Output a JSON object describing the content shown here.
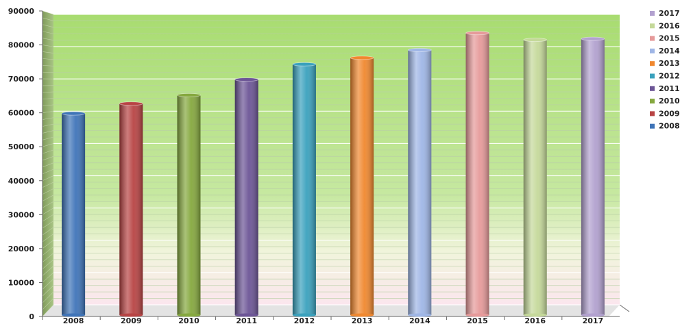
{
  "chart_data": {
    "type": "bar",
    "categories": [
      "2008",
      "2009",
      "2010",
      "2011",
      "2012",
      "2013",
      "2014",
      "2015",
      "2016",
      "2017"
    ],
    "values": [
      59800,
      62700,
      65200,
      69800,
      74300,
      76200,
      78500,
      83500,
      81500,
      81800
    ],
    "ylim": [
      0,
      90000
    ],
    "yticks": [
      0,
      10000,
      20000,
      30000,
      40000,
      50000,
      60000,
      70000,
      80000,
      90000
    ],
    "grid": true,
    "legend_position": "right",
    "legend": [
      "2017",
      "2016",
      "2015",
      "2014",
      "2013",
      "2012",
      "2011",
      "2010",
      "2009",
      "2008"
    ],
    "colors": [
      "#3f74b8",
      "#b84444",
      "#85a83e",
      "#6c5596",
      "#3aa1bd",
      "#f0882f",
      "#9fb6e6",
      "#e69a9a",
      "#c5d99a",
      "#b2a1cf"
    ]
  }
}
